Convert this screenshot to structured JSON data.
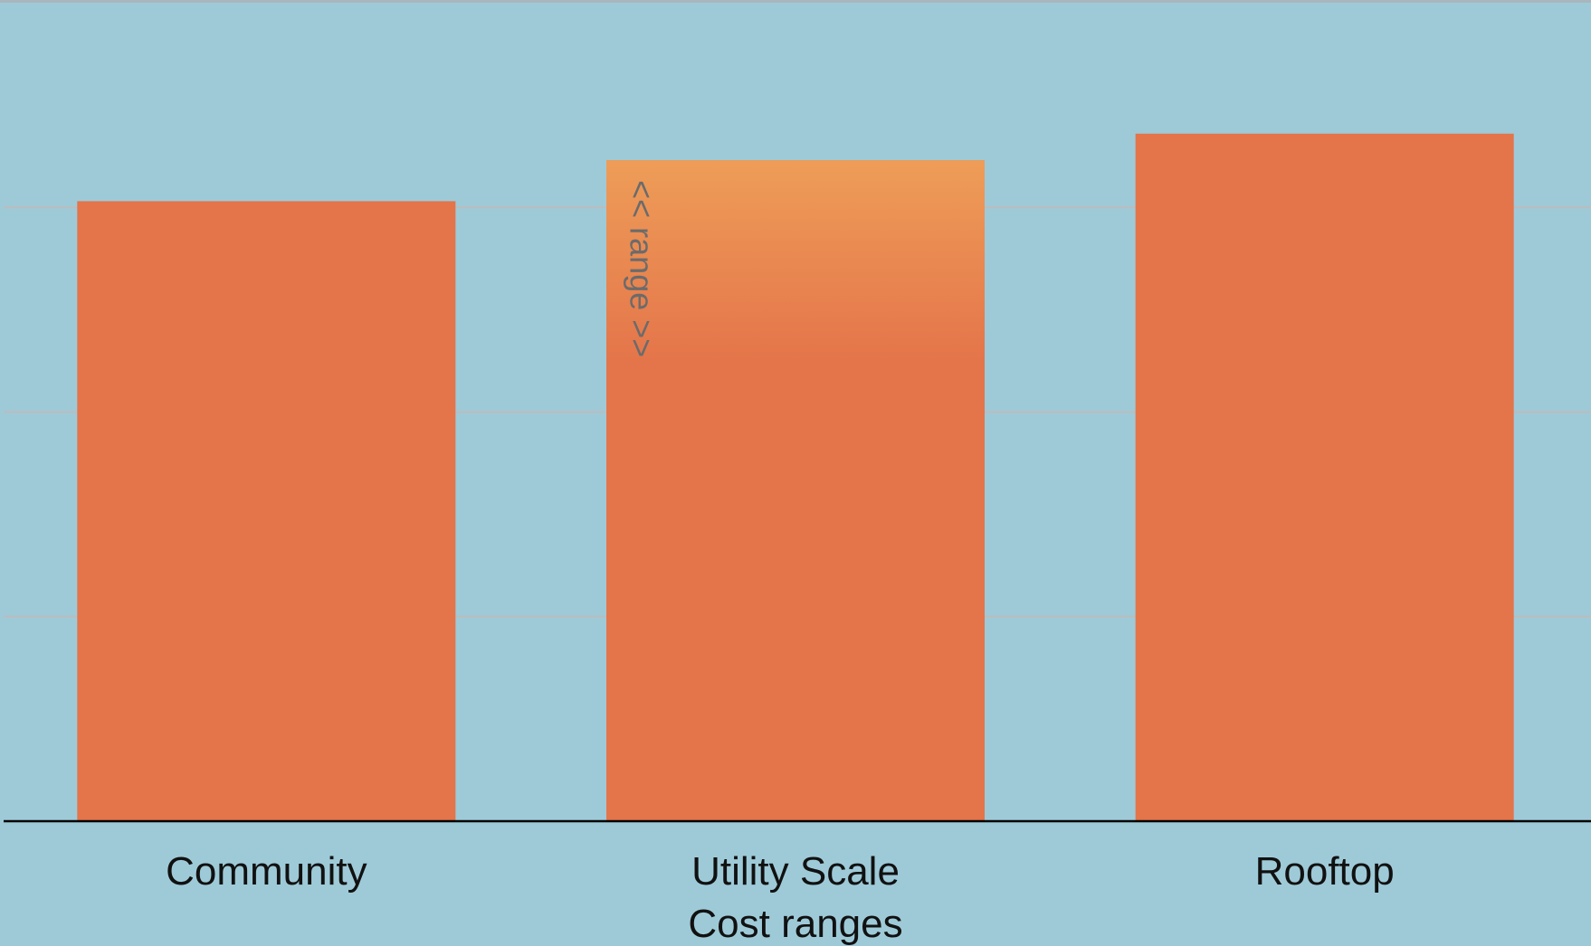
{
  "chart_data": {
    "type": "bar",
    "categories": [
      "Community",
      "Utility Scale",
      "Rooftop"
    ],
    "values": [
      3.03,
      3.23,
      3.36
    ],
    "range_segment": {
      "category": "Utility Scale",
      "from": 2.23,
      "to": 3.23,
      "label": "<< range >>",
      "top_color": "#ee9d58"
    },
    "title": "",
    "xlabel": "Cost ranges",
    "ylabel": "",
    "ylim": [
      0,
      4
    ],
    "yticks": [
      1,
      2,
      3,
      4
    ],
    "grid": true,
    "colors": {
      "background": "#9ecad8",
      "bar": "#e4744a",
      "grid": "#bcbcbc",
      "axis": "#000000"
    }
  }
}
